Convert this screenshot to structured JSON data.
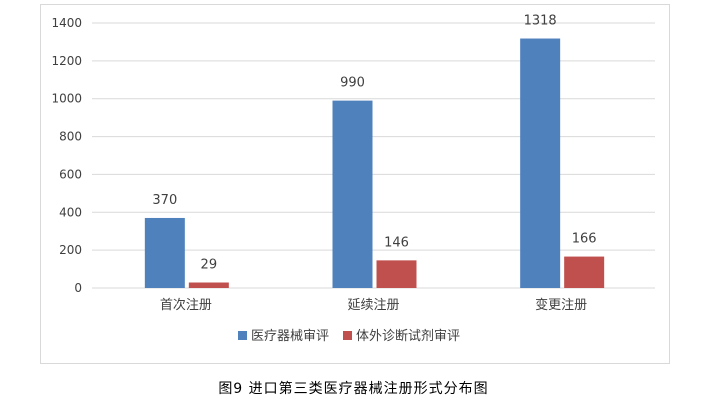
{
  "caption": "图9 进口第三类医疗器械注册形式分布图",
  "chart_data": {
    "type": "bar",
    "categories": [
      "首次注册",
      "延续注册",
      "变更注册"
    ],
    "series": [
      {
        "name": "医疗器械审评",
        "color": "#4f81bd",
        "values": [
          370,
          990,
          1318
        ]
      },
      {
        "name": "体外诊断试剂审评",
        "color": "#c0504d",
        "values": [
          29,
          146,
          166
        ]
      }
    ],
    "ylim": [
      0,
      1400
    ],
    "yticks": [
      0,
      200,
      400,
      600,
      800,
      1000,
      1200,
      1400
    ],
    "grid": true,
    "legend": "bottom",
    "xlabel": "",
    "ylabel": ""
  }
}
